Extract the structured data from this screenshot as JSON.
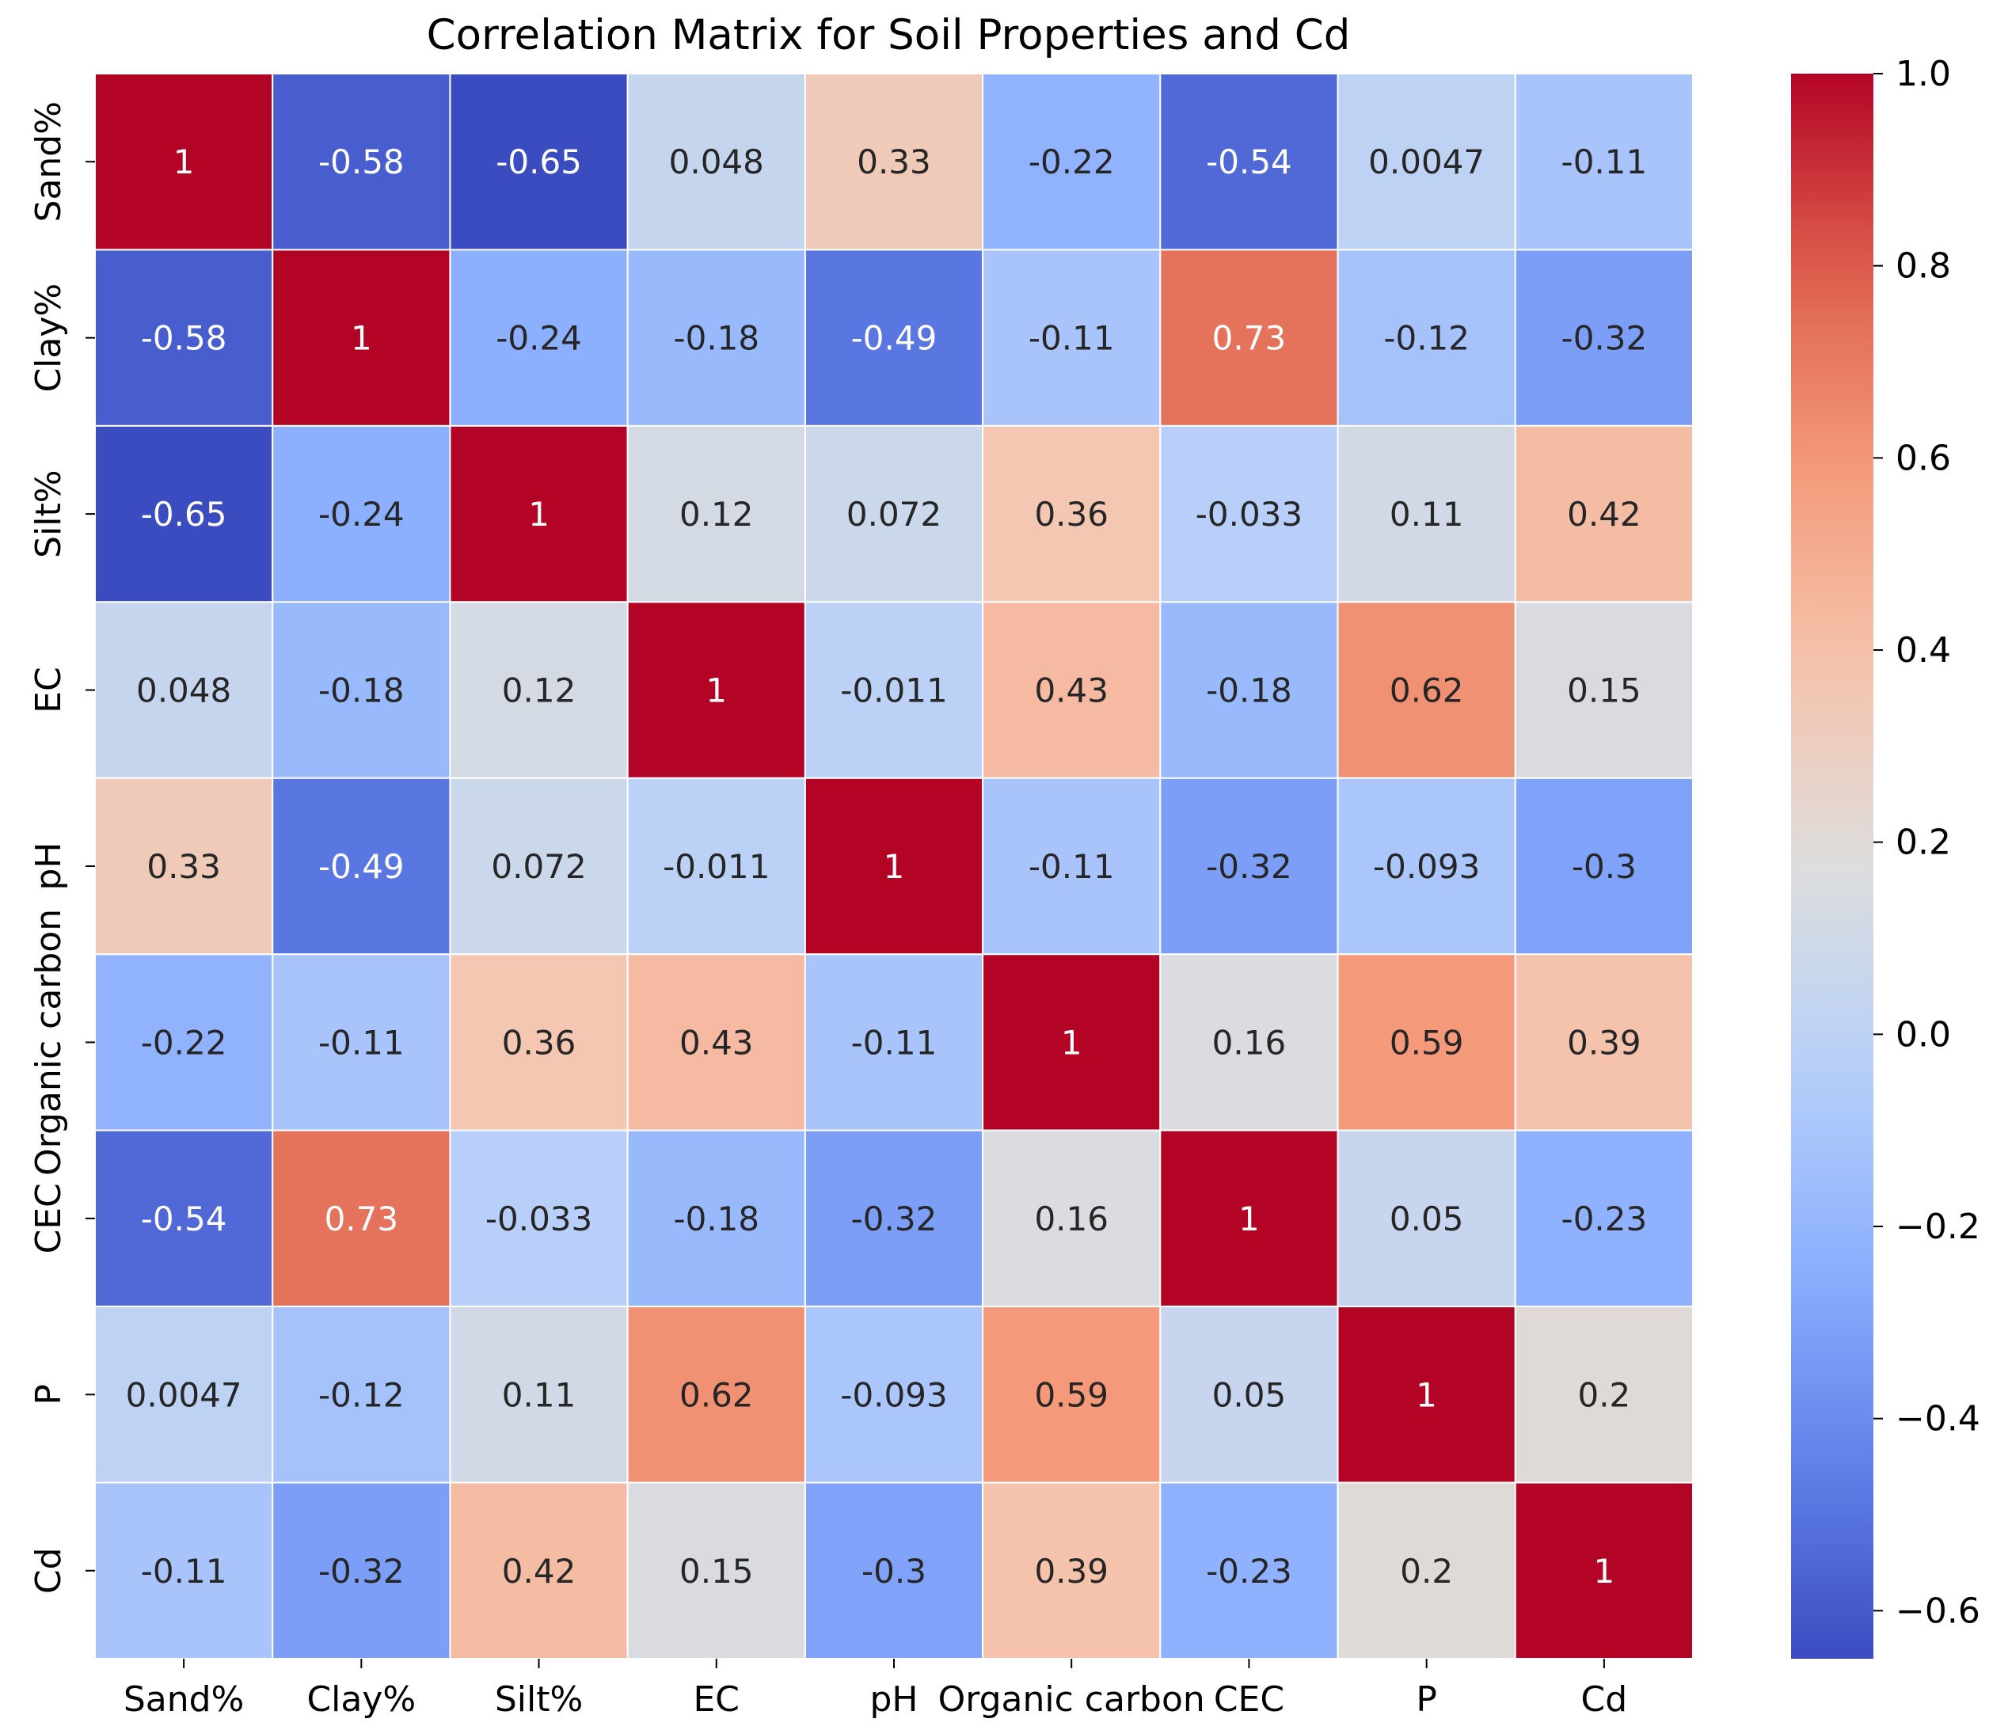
{
  "chart_data": {
    "type": "heatmap",
    "title": "Correlation Matrix for Soil Properties and Cd",
    "x_labels": [
      "Sand%",
      "Clay%",
      "Silt%",
      "EC",
      "pH",
      "Organic carbon",
      "CEC",
      "P",
      "Cd"
    ],
    "y_labels": [
      "Sand%",
      "Clay%",
      "Silt%",
      "EC",
      "pH",
      "Organic carbon",
      "CEC",
      "P",
      "Cd"
    ],
    "values": [
      [
        1,
        -0.58,
        -0.65,
        0.048,
        0.33,
        -0.22,
        -0.54,
        0.0047,
        -0.11
      ],
      [
        -0.58,
        1,
        -0.24,
        -0.18,
        -0.49,
        -0.11,
        0.73,
        -0.12,
        -0.32
      ],
      [
        -0.65,
        -0.24,
        1,
        0.12,
        0.072,
        0.36,
        -0.033,
        0.11,
        0.42
      ],
      [
        0.048,
        -0.18,
        0.12,
        1,
        -0.011,
        0.43,
        -0.18,
        0.62,
        0.15
      ],
      [
        0.33,
        -0.49,
        0.072,
        -0.011,
        1,
        -0.11,
        -0.32,
        -0.093,
        -0.3
      ],
      [
        -0.22,
        -0.11,
        0.36,
        0.43,
        -0.11,
        1,
        0.16,
        0.59,
        0.39
      ],
      [
        -0.54,
        0.73,
        -0.033,
        -0.18,
        -0.32,
        0.16,
        1,
        0.05,
        -0.23
      ],
      [
        0.0047,
        -0.12,
        0.11,
        0.62,
        -0.093,
        0.59,
        0.05,
        1,
        0.2
      ],
      [
        -0.11,
        -0.32,
        0.42,
        0.15,
        -0.3,
        0.39,
        -0.23,
        0.2,
        1
      ]
    ],
    "labels": [
      [
        "1",
        "-0.58",
        "-0.65",
        "0.048",
        "0.33",
        "-0.22",
        "-0.54",
        "0.0047",
        "-0.11"
      ],
      [
        "-0.58",
        "1",
        "-0.24",
        "-0.18",
        "-0.49",
        "-0.11",
        "0.73",
        "-0.12",
        "-0.32"
      ],
      [
        "-0.65",
        "-0.24",
        "1",
        "0.12",
        "0.072",
        "0.36",
        "-0.033",
        "0.11",
        "0.42"
      ],
      [
        "0.048",
        "-0.18",
        "0.12",
        "1",
        "-0.011",
        "0.43",
        "-0.18",
        "0.62",
        "0.15"
      ],
      [
        "0.33",
        "-0.49",
        "0.072",
        "-0.011",
        "1",
        "-0.11",
        "-0.32",
        "-0.093",
        "-0.3"
      ],
      [
        "-0.22",
        "-0.11",
        "0.36",
        "0.43",
        "-0.11",
        "1",
        "0.16",
        "0.59",
        "0.39"
      ],
      [
        "-0.54",
        "0.73",
        "-0.033",
        "-0.18",
        "-0.32",
        "0.16",
        "1",
        "0.05",
        "-0.23"
      ],
      [
        "0.0047",
        "-0.12",
        "0.11",
        "0.62",
        "-0.093",
        "0.59",
        "0.05",
        "1",
        "0.2"
      ],
      [
        "-0.11",
        "-0.32",
        "0.42",
        "0.15",
        "-0.3",
        "0.39",
        "-0.23",
        "0.2",
        "1"
      ]
    ],
    "colormap": "coolwarm",
    "vmin": -0.65,
    "vmax": 1.0,
    "colorbar_ticks": [
      1.0,
      0.8,
      0.6,
      0.4,
      0.2,
      0.0,
      -0.2,
      -0.4,
      -0.6
    ],
    "colorbar_tick_labels": [
      "1.0",
      "0.8",
      "0.6",
      "0.4",
      "0.2",
      "0.0",
      "−0.2",
      "−0.4",
      "−0.6"
    ],
    "colorbar_position": "right",
    "cell_border_color": "#ffffff",
    "xlabel": "",
    "ylabel": ""
  }
}
